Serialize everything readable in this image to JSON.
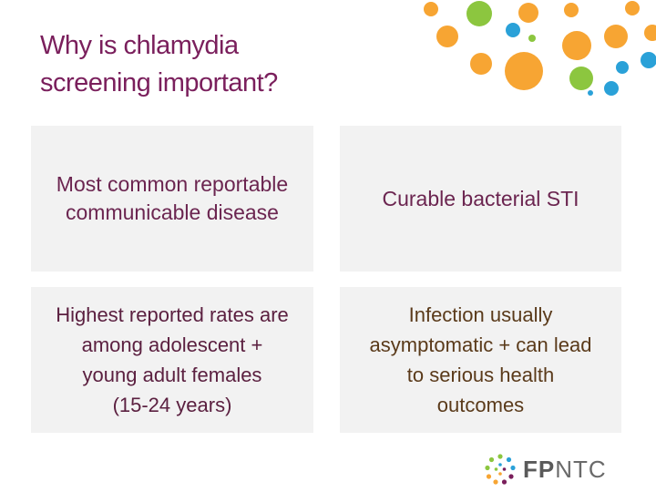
{
  "slide": {
    "title_lines": [
      "Why is chlamydia",
      "screening important?"
    ],
    "boxes": [
      {
        "lines": [
          "Most common reportable",
          "communicable disease"
        ]
      },
      {
        "lines": [
          "Curable bacterial STI"
        ]
      },
      {
        "lines": [
          "Highest reported rates are",
          "among adolescent +",
          "young adult females",
          "(15-24 years)"
        ]
      },
      {
        "lines": [
          "Infection usually",
          "asymptomatic + can lead",
          "to serious health",
          "outcomes"
        ]
      }
    ]
  },
  "logo": {
    "brand_bold": "FP",
    "brand_rest": "NTC"
  },
  "colors": {
    "title": "#7a1f5c",
    "box_background": "#f2f2f2",
    "dot_orange": "#f7a533",
    "dot_green": "#8cc63f",
    "dot_blue": "#2aa1d8"
  }
}
